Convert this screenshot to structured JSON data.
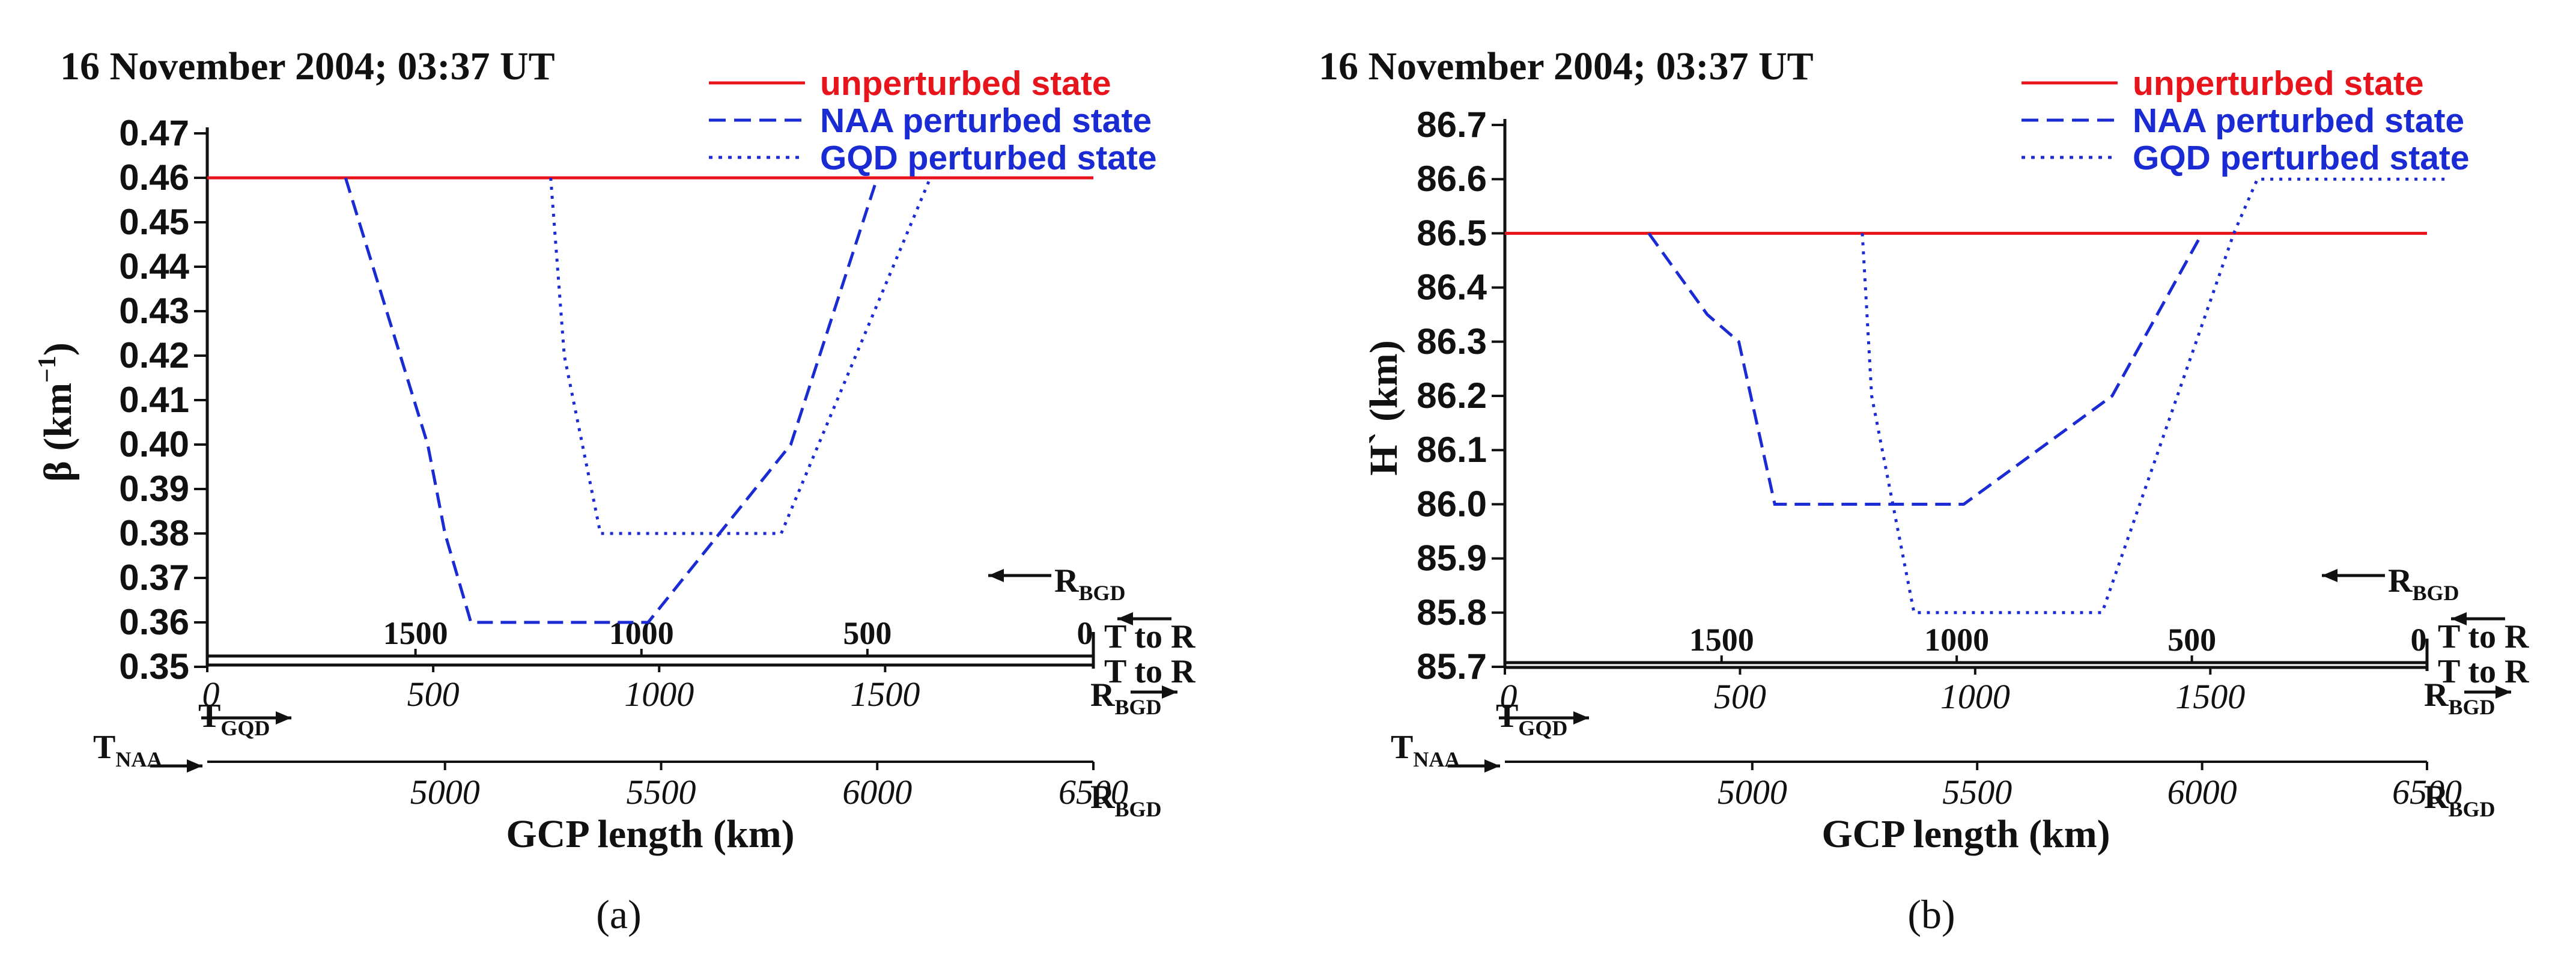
{
  "figure": {
    "panel_labels": [
      "(a)",
      "(b)"
    ],
    "legend": {
      "unperturbed": "unperturbed state",
      "naa": "NAA perturbed state",
      "gqd": "GQD perturbed state"
    },
    "colors": {
      "unperturbed": "#e8141c",
      "naa": "#1a2bd4",
      "gqd": "#1a2bd4",
      "text": "#111111"
    },
    "annotations": {
      "t_naa": "T",
      "t_naa_sub": "NAA",
      "t_gqd": "T",
      "t_gqd_sub": "GQD",
      "r_bgd": "R",
      "r_bgd_sub": "BGD",
      "t_to_r": "T to R"
    }
  },
  "chart_data": [
    {
      "type": "line",
      "title": "16 November 2004; 03:37 UT",
      "ylabel": "β (km",
      "ylabel_sup": "−1",
      "ylabel_close": ")",
      "xlabel": "GCP length (km)",
      "ylim": [
        0.35,
        0.47
      ],
      "yticks": [
        0.35,
        0.36,
        0.37,
        0.38,
        0.39,
        0.4,
        0.41,
        0.42,
        0.43,
        0.44,
        0.45,
        0.46,
        0.47
      ],
      "ytick_labels": [
        "0.35",
        "0.36",
        "0.37",
        "0.38",
        "0.39",
        "0.40",
        "0.41",
        "0.42",
        "0.43",
        "0.44",
        "0.45",
        "0.46",
        "0.47"
      ],
      "x_naa_axis": {
        "range": [
          4450,
          6500
        ],
        "ticks": [
          5000,
          5500,
          6000,
          6500
        ],
        "labels": [
          "5000",
          "5500",
          "6000",
          "6500"
        ]
      },
      "x_gqd_axis": {
        "range": [
          0,
          2000
        ],
        "ticks": [
          0,
          500,
          1000,
          1500
        ],
        "labels": [
          "0",
          "500",
          "1000",
          "1500"
        ]
      },
      "x_bgd_axis": {
        "ticks": [
          0,
          500,
          1000,
          1500
        ],
        "labels": [
          "0",
          "500",
          "1000",
          "1500"
        ]
      },
      "series": [
        {
          "name": "unperturbed state",
          "style": "solid",
          "x": [
            4450,
            6500
          ],
          "y": [
            0.46,
            0.46
          ]
        },
        {
          "name": "NAA perturbed state",
          "style": "dashed",
          "x": [
            4770,
            4960,
            5000,
            5060,
            5470,
            5800,
            6000
          ],
          "y": [
            0.46,
            0.4,
            0.38,
            0.36,
            0.36,
            0.4,
            0.46
          ]
        },
        {
          "name": "GQD perturbed state",
          "style": "dotted",
          "x": [
            760,
            790,
            870,
            1270,
            1600
          ],
          "y": [
            0.46,
            0.42,
            0.38,
            0.38,
            0.46
          ]
        }
      ]
    },
    {
      "type": "line",
      "title": "16 November 2004; 03:37 UT",
      "ylabel": "H` (km)",
      "xlabel": "GCP length (km)",
      "ylim": [
        85.7,
        86.7
      ],
      "yticks": [
        85.7,
        85.8,
        85.9,
        86.0,
        86.1,
        86.2,
        86.3,
        86.4,
        86.5,
        86.6,
        86.7
      ],
      "ytick_labels": [
        "85.7",
        "85.8",
        "85.9",
        "86.0",
        "86.1",
        "86.2",
        "86.3",
        "86.4",
        "86.5",
        "86.6",
        "86.7"
      ],
      "x_naa_axis": {
        "range": [
          4450,
          6500
        ],
        "ticks": [
          5000,
          5500,
          6000,
          6500
        ],
        "labels": [
          "5000",
          "5500",
          "6000",
          "6500"
        ]
      },
      "x_gqd_axis": {
        "range": [
          0,
          2000
        ],
        "ticks": [
          0,
          500,
          1000,
          1500
        ],
        "labels": [
          "0",
          "500",
          "1000",
          "1500"
        ]
      },
      "x_bgd_axis": {
        "ticks": [
          0,
          500,
          1000,
          1500
        ],
        "labels": [
          "0",
          "500",
          "1000",
          "1500"
        ]
      },
      "series": [
        {
          "name": "unperturbed state",
          "style": "solid",
          "x": [
            4450,
            6500
          ],
          "y": [
            86.5,
            86.5
          ]
        },
        {
          "name": "NAA perturbed state",
          "style": "dashed",
          "x": [
            4770,
            4900,
            4970,
            5050,
            5470,
            5800,
            6000
          ],
          "y": [
            86.5,
            86.35,
            86.3,
            86.0,
            86.0,
            86.2,
            86.5
          ]
        },
        {
          "name": "GQD perturbed state",
          "style": "dotted",
          "x": [
            760,
            780,
            870,
            1270,
            1550,
            1600,
            2000
          ],
          "y": [
            86.5,
            86.2,
            85.8,
            85.8,
            86.5,
            86.6,
            86.6
          ]
        }
      ]
    }
  ]
}
